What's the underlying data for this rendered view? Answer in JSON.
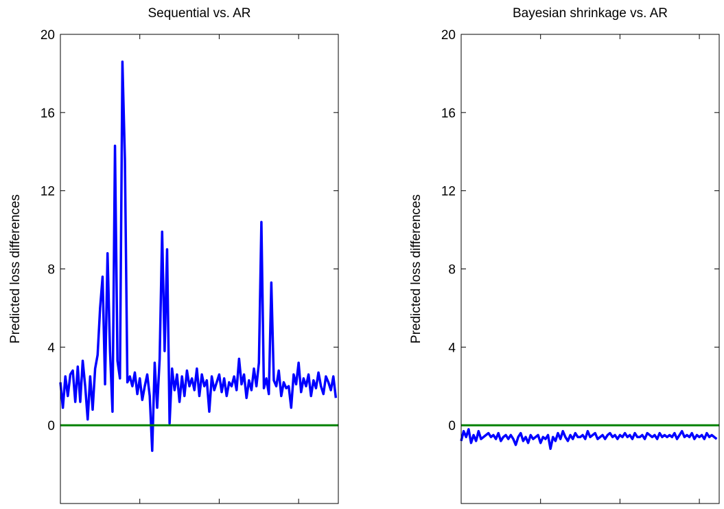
{
  "chart_data": [
    {
      "type": "line",
      "title": "Sequential vs. AR",
      "y_label": "Predicted loss differences",
      "xlim": [
        1972,
        2000
      ],
      "xticks": [
        1972,
        1980,
        1988,
        1996
      ],
      "ylim": [
        -4,
        20
      ],
      "yticks": [
        0,
        4,
        8,
        12,
        16,
        20
      ],
      "reference_line": 0,
      "reference_color": "#008000",
      "x": [
        1972,
        1972.25,
        1972.5,
        1972.75,
        1973,
        1973.25,
        1973.5,
        1973.75,
        1974,
        1974.25,
        1974.5,
        1974.75,
        1975,
        1975.25,
        1975.5,
        1975.75,
        1976,
        1976.25,
        1976.5,
        1976.75,
        1977,
        1977.25,
        1977.5,
        1977.75,
        1978,
        1978.25,
        1978.5,
        1978.75,
        1979,
        1979.25,
        1979.5,
        1979.75,
        1980,
        1980.25,
        1980.5,
        1980.75,
        1981,
        1981.25,
        1981.5,
        1981.75,
        1982,
        1982.25,
        1982.5,
        1982.75,
        1983,
        1983.25,
        1983.5,
        1983.75,
        1984,
        1984.25,
        1984.5,
        1984.75,
        1985,
        1985.25,
        1985.5,
        1985.75,
        1986,
        1986.25,
        1986.5,
        1986.75,
        1987,
        1987.25,
        1987.5,
        1987.75,
        1988,
        1988.25,
        1988.5,
        1988.75,
        1989,
        1989.25,
        1989.5,
        1989.75,
        1990,
        1990.25,
        1990.5,
        1990.75,
        1991,
        1991.25,
        1991.5,
        1991.75,
        1992,
        1992.25,
        1992.5,
        1992.75,
        1993,
        1993.25,
        1993.5,
        1993.75,
        1994,
        1994.25,
        1994.5,
        1994.75,
        1995,
        1995.25,
        1995.5,
        1995.75,
        1996,
        1996.25,
        1996.5,
        1996.75,
        1997,
        1997.25,
        1997.5,
        1997.75,
        1998,
        1998.25,
        1998.5,
        1998.75,
        1999,
        1999.25,
        1999.5,
        1999.75
      ],
      "series": [
        {
          "color": "#0000ff",
          "values": [
            2.2,
            0.9,
            2.5,
            1.5,
            2.6,
            2.8,
            1.2,
            3.0,
            1.2,
            3.3,
            2.0,
            0.3,
            2.5,
            0.8,
            2.9,
            3.6,
            6.0,
            7.6,
            2.1,
            8.8,
            3.8,
            0.7,
            14.3,
            3.3,
            2.4,
            18.6,
            13.6,
            2.2,
            2.5,
            2.0,
            2.7,
            1.6,
            2.4,
            1.3,
            2.0,
            2.6,
            1.5,
            -1.3,
            3.2,
            0.9,
            3.4,
            9.9,
            3.8,
            9.0,
            0.1,
            2.9,
            1.8,
            2.6,
            1.2,
            2.5,
            1.5,
            2.8,
            2.0,
            2.4,
            1.8,
            2.9,
            1.5,
            2.6,
            2.0,
            2.3,
            0.7,
            2.5,
            1.8,
            2.2,
            2.6,
            1.7,
            2.4,
            1.5,
            2.2,
            2.0,
            2.5,
            1.8,
            3.4,
            2.1,
            2.6,
            1.4,
            2.3,
            1.8,
            2.9,
            2.0,
            3.2,
            10.4,
            1.9,
            2.4,
            1.6,
            7.3,
            2.3,
            2.0,
            2.8,
            1.5,
            2.2,
            1.9,
            2.0,
            0.9,
            2.6,
            2.1,
            3.2,
            1.7,
            2.4,
            2.0,
            2.6,
            1.5,
            2.3,
            1.9,
            2.7,
            2.0,
            1.6,
            2.5,
            2.2,
            1.8,
            2.5,
            1.4
          ]
        }
      ]
    },
    {
      "type": "line",
      "title": "Bayesian shrinkage vs. AR",
      "y_label": "Predicted loss differences",
      "xlim": [
        1972,
        1998
      ],
      "xticks": [
        1972,
        1980,
        1988,
        1996
      ],
      "ylim": [
        -4,
        20
      ],
      "yticks": [
        0,
        4,
        8,
        12,
        16,
        20
      ],
      "reference_line": 0,
      "reference_color": "#008000",
      "x": [
        1972,
        1972.25,
        1972.5,
        1972.75,
        1973,
        1973.25,
        1973.5,
        1973.75,
        1974,
        1974.25,
        1974.5,
        1974.75,
        1975,
        1975.25,
        1975.5,
        1975.75,
        1976,
        1976.25,
        1976.5,
        1976.75,
        1977,
        1977.25,
        1977.5,
        1977.75,
        1978,
        1978.25,
        1978.5,
        1978.75,
        1979,
        1979.25,
        1979.5,
        1979.75,
        1980,
        1980.25,
        1980.5,
        1980.75,
        1981,
        1981.25,
        1981.5,
        1981.75,
        1982,
        1982.25,
        1982.5,
        1982.75,
        1983,
        1983.25,
        1983.5,
        1983.75,
        1984,
        1984.25,
        1984.5,
        1984.75,
        1985,
        1985.25,
        1985.5,
        1985.75,
        1986,
        1986.25,
        1986.5,
        1986.75,
        1987,
        1987.25,
        1987.5,
        1987.75,
        1988,
        1988.25,
        1988.5,
        1988.75,
        1989,
        1989.25,
        1989.5,
        1989.75,
        1990,
        1990.25,
        1990.5,
        1990.75,
        1991,
        1991.25,
        1991.5,
        1991.75,
        1992,
        1992.25,
        1992.5,
        1992.75,
        1993,
        1993.25,
        1993.5,
        1993.75,
        1994,
        1994.25,
        1994.5,
        1994.75,
        1995,
        1995.25,
        1995.5,
        1995.75,
        1996,
        1996.25,
        1996.5,
        1996.75,
        1997,
        1997.25,
        1997.5,
        1997.75
      ],
      "series": [
        {
          "color": "#0000ff",
          "values": [
            -0.8,
            -0.3,
            -0.6,
            -0.2,
            -0.9,
            -0.5,
            -0.8,
            -0.3,
            -0.7,
            -0.6,
            -0.5,
            -0.4,
            -0.6,
            -0.5,
            -0.7,
            -0.4,
            -0.8,
            -0.6,
            -0.5,
            -0.7,
            -0.5,
            -0.7,
            -1.0,
            -0.6,
            -0.4,
            -0.8,
            -0.6,
            -0.9,
            -0.5,
            -0.7,
            -0.6,
            -0.5,
            -0.9,
            -0.6,
            -0.7,
            -0.5,
            -1.2,
            -0.6,
            -0.8,
            -0.4,
            -0.7,
            -0.3,
            -0.6,
            -0.8,
            -0.5,
            -0.7,
            -0.4,
            -0.6,
            -0.6,
            -0.5,
            -0.7,
            -0.3,
            -0.6,
            -0.5,
            -0.4,
            -0.7,
            -0.6,
            -0.5,
            -0.7,
            -0.5,
            -0.4,
            -0.6,
            -0.5,
            -0.7,
            -0.5,
            -0.6,
            -0.4,
            -0.6,
            -0.5,
            -0.7,
            -0.4,
            -0.6,
            -0.6,
            -0.5,
            -0.7,
            -0.4,
            -0.5,
            -0.6,
            -0.5,
            -0.7,
            -0.4,
            -0.6,
            -0.5,
            -0.6,
            -0.5,
            -0.6,
            -0.4,
            -0.7,
            -0.5,
            -0.3,
            -0.6,
            -0.5,
            -0.6,
            -0.4,
            -0.7,
            -0.5,
            -0.6,
            -0.5,
            -0.7,
            -0.4,
            -0.6,
            -0.5,
            -0.6,
            -0.7
          ]
        }
      ]
    }
  ]
}
